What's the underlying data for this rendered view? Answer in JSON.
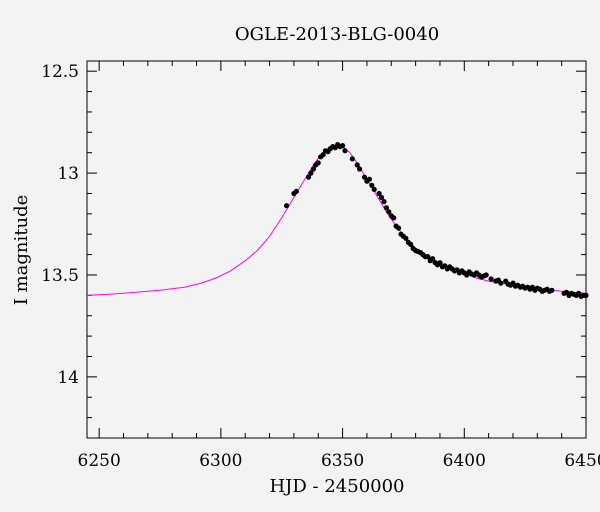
{
  "chart_data": {
    "type": "scatter",
    "title": "OGLE-2013-BLG-0040",
    "xlabel": "HJD - 2450000",
    "ylabel": "I magnitude",
    "xlim": [
      6245,
      6450
    ],
    "ylim": [
      14.3,
      12.45
    ],
    "y_inverted": true,
    "grid": false,
    "xticks": [
      6250,
      6300,
      6350,
      6400,
      6450
    ],
    "xtick_labels": [
      "6250",
      "6300",
      "6350",
      "6400",
      "6450"
    ],
    "yticks": [
      12.5,
      13,
      13.5,
      14
    ],
    "ytick_labels": [
      "12.5",
      "13",
      "13.5",
      "14"
    ],
    "series": [
      {
        "kind": "line",
        "color": "#ff00ff",
        "x": [
          6245,
          6255,
          6265,
          6275,
          6285,
          6292,
          6298,
          6304,
          6310,
          6315,
          6320,
          6325,
          6330,
          6334,
          6338,
          6341,
          6344,
          6347,
          6350,
          6353,
          6356,
          6360,
          6364,
          6368,
          6372,
          6376,
          6380,
          6385,
          6390,
          6395,
          6400,
          6405,
          6410,
          6420,
          6430,
          6440,
          6450
        ],
        "y": [
          13.6,
          13.594,
          13.585,
          13.575,
          13.56,
          13.54,
          13.515,
          13.48,
          13.43,
          13.38,
          13.31,
          13.22,
          13.12,
          13.04,
          12.96,
          12.91,
          12.88,
          12.865,
          12.87,
          12.9,
          12.95,
          13.03,
          13.11,
          13.19,
          13.26,
          13.32,
          13.37,
          13.41,
          13.44,
          13.47,
          13.49,
          13.515,
          13.53,
          13.55,
          13.565,
          13.58,
          13.59
        ]
      },
      {
        "kind": "points",
        "color": "#000000",
        "x": [
          6327,
          6330,
          6331,
          6336,
          6337,
          6338,
          6339,
          6340,
          6341,
          6342,
          6343,
          6344,
          6345,
          6346,
          6347,
          6348,
          6349,
          6350,
          6351,
          6354,
          6356,
          6357,
          6359,
          6360,
          6361,
          6362,
          6363,
          6365,
          6366,
          6367,
          6368,
          6369,
          6370,
          6371,
          6372,
          6373,
          6374,
          6375,
          6376,
          6377,
          6378,
          6379,
          6380,
          6381,
          6382,
          6383,
          6384,
          6385,
          6386,
          6387,
          6388,
          6389,
          6390,
          6391,
          6392,
          6393,
          6394,
          6395,
          6396,
          6397,
          6398,
          6399,
          6400,
          6401,
          6402,
          6403,
          6404,
          6405,
          6406,
          6407,
          6408,
          6409,
          6411,
          6413,
          6414,
          6415,
          6417,
          6418,
          6419,
          6420,
          6421,
          6422,
          6423,
          6424,
          6425,
          6426,
          6427,
          6428,
          6429,
          6430,
          6431,
          6432,
          6433,
          6434,
          6435,
          6436,
          6441,
          6442,
          6443,
          6444,
          6445,
          6446,
          6447,
          6448,
          6449,
          6450
        ],
        "y": [
          13.16,
          13.1,
          13.09,
          13.02,
          13.0,
          12.98,
          12.96,
          12.95,
          12.92,
          12.91,
          12.89,
          12.895,
          12.88,
          12.87,
          12.875,
          12.86,
          12.87,
          12.865,
          12.89,
          12.93,
          12.96,
          12.98,
          13.02,
          13.04,
          13.03,
          13.06,
          13.08,
          13.1,
          13.12,
          13.14,
          13.17,
          13.19,
          13.21,
          13.22,
          13.26,
          13.27,
          13.3,
          13.31,
          13.32,
          13.34,
          13.35,
          13.37,
          13.38,
          13.385,
          13.39,
          13.4,
          13.41,
          13.41,
          13.43,
          13.42,
          13.44,
          13.45,
          13.44,
          13.46,
          13.455,
          13.47,
          13.46,
          13.47,
          13.48,
          13.475,
          13.49,
          13.48,
          13.49,
          13.5,
          13.485,
          13.495,
          13.5,
          13.49,
          13.5,
          13.51,
          13.505,
          13.5,
          13.52,
          13.53,
          13.525,
          13.54,
          13.53,
          13.545,
          13.55,
          13.54,
          13.555,
          13.55,
          13.56,
          13.555,
          13.565,
          13.56,
          13.57,
          13.56,
          13.575,
          13.565,
          13.57,
          13.58,
          13.575,
          13.57,
          13.58,
          13.575,
          13.59,
          13.585,
          13.6,
          13.59,
          13.595,
          13.6,
          13.59,
          13.605,
          13.6,
          13.6
        ]
      }
    ]
  }
}
